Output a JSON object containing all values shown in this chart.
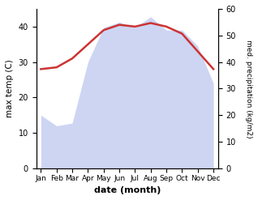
{
  "months": [
    "Jan",
    "Feb",
    "Mar",
    "Apr",
    "May",
    "Jun",
    "Jul",
    "Aug",
    "Sep",
    "Oct",
    "Nov",
    "Dec"
  ],
  "month_indices": [
    0,
    1,
    2,
    3,
    4,
    5,
    6,
    7,
    8,
    9,
    10,
    11
  ],
  "temp_max": [
    28,
    28.5,
    31,
    35,
    39,
    40.5,
    40,
    41,
    40,
    38,
    33,
    28
  ],
  "precipitation": [
    20,
    16,
    17,
    40,
    53,
    55,
    53,
    57,
    52,
    52,
    46,
    32
  ],
  "temp_color": "#cc3333",
  "precip_fill_color": "#b8c4ee",
  "precip_fill_alpha": 0.7,
  "temp_linewidth": 1.8,
  "ylabel_left": "max temp (C)",
  "ylabel_right": "med. precipitation (kg/m2)",
  "xlabel": "date (month)",
  "ylim_left": [
    0,
    45
  ],
  "ylim_right": [
    0,
    60
  ],
  "yticks_left": [
    0,
    10,
    20,
    30,
    40
  ],
  "yticks_right": [
    0,
    10,
    20,
    30,
    40,
    50,
    60
  ],
  "background_color": "#ffffff"
}
